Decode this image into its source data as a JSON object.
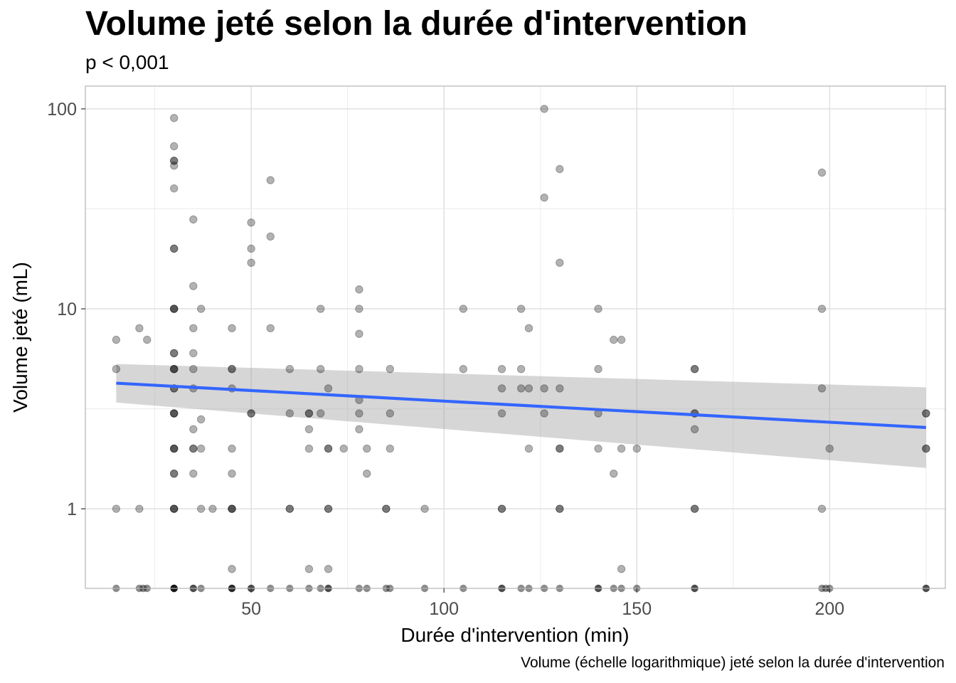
{
  "chart_data": {
    "type": "scatter",
    "title": "Volume jeté selon la durée d'intervention",
    "subtitle": "p < 0,001",
    "caption": "Volume (échelle logarithmique) jeté selon la durée d'intervention",
    "xlabel": "Durée d'intervention (min)",
    "ylabel": "Volume jeté (mL)",
    "x_scale": "linear",
    "y_scale": "log10",
    "xlim": [
      7,
      230
    ],
    "ylim": [
      0.4,
      130
    ],
    "x_ticks": [
      50,
      100,
      150,
      200
    ],
    "x_tick_labels": [
      "50",
      "100",
      "150",
      "200"
    ],
    "y_ticks": [
      1,
      10,
      100
    ],
    "y_tick_labels": [
      "1",
      "10",
      "100"
    ],
    "grid": true,
    "legend": "none",
    "colors": {
      "points": "#000000",
      "trend_line": "#3366FF",
      "confidence_band": "#999999",
      "grid": "#EBEBEB",
      "panel_border": "#B3B3B3"
    },
    "trend": {
      "method": "linear regression (log scale)",
      "x": [
        15,
        225
      ],
      "y": [
        4.25,
        2.55
      ],
      "ci_lower": [
        3.4,
        1.6
      ],
      "ci_upper": [
        5.3,
        4.05
      ]
    },
    "points": [
      [
        15,
        7
      ],
      [
        15,
        5
      ],
      [
        15,
        1
      ],
      [
        21,
        8
      ],
      [
        21,
        1
      ],
      [
        23,
        7
      ],
      [
        30,
        90
      ],
      [
        30,
        65
      ],
      [
        30,
        55
      ],
      [
        30,
        55
      ],
      [
        30,
        52
      ],
      [
        30,
        40
      ],
      [
        30,
        20
      ],
      [
        30,
        20
      ],
      [
        30,
        10
      ],
      [
        30,
        10
      ],
      [
        30,
        10
      ],
      [
        30,
        6
      ],
      [
        30,
        6
      ],
      [
        30,
        5
      ],
      [
        30,
        5
      ],
      [
        30,
        5
      ],
      [
        30,
        4
      ],
      [
        30,
        4
      ],
      [
        30,
        3
      ],
      [
        30,
        3
      ],
      [
        30,
        3
      ],
      [
        30,
        2
      ],
      [
        30,
        2
      ],
      [
        30,
        2
      ],
      [
        30,
        1.5
      ],
      [
        30,
        1.5
      ],
      [
        30,
        1
      ],
      [
        30,
        1
      ],
      [
        30,
        1
      ],
      [
        35,
        28
      ],
      [
        35,
        13
      ],
      [
        35,
        8
      ],
      [
        35,
        6
      ],
      [
        35,
        5
      ],
      [
        35,
        4
      ],
      [
        35,
        2.5
      ],
      [
        35,
        2
      ],
      [
        35,
        2
      ],
      [
        35,
        1.5
      ],
      [
        37,
        10
      ],
      [
        37,
        2.8
      ],
      [
        37,
        2
      ],
      [
        37,
        1
      ],
      [
        40,
        1
      ],
      [
        45,
        8
      ],
      [
        45,
        5
      ],
      [
        45,
        5
      ],
      [
        45,
        4
      ],
      [
        45,
        2
      ],
      [
        45,
        1.5
      ],
      [
        45,
        1
      ],
      [
        45,
        1
      ],
      [
        45,
        1
      ],
      [
        45,
        0.5
      ],
      [
        50,
        27
      ],
      [
        50,
        20
      ],
      [
        50,
        17
      ],
      [
        50,
        3
      ],
      [
        50,
        3
      ],
      [
        55,
        44
      ],
      [
        55,
        23
      ],
      [
        55,
        8
      ],
      [
        60,
        5
      ],
      [
        60,
        3
      ],
      [
        60,
        1
      ],
      [
        60,
        1
      ],
      [
        65,
        3
      ],
      [
        65,
        3
      ],
      [
        65,
        2.5
      ],
      [
        65,
        2
      ],
      [
        65,
        0.5
      ],
      [
        68,
        10
      ],
      [
        68,
        5
      ],
      [
        68,
        3
      ],
      [
        70,
        4
      ],
      [
        70,
        2
      ],
      [
        70,
        2
      ],
      [
        70,
        1
      ],
      [
        70,
        1
      ],
      [
        70,
        0.5
      ],
      [
        74,
        2
      ],
      [
        78,
        12.5
      ],
      [
        78,
        10
      ],
      [
        78,
        7.5
      ],
      [
        78,
        5
      ],
      [
        78,
        3.5
      ],
      [
        78,
        3
      ],
      [
        78,
        2.5
      ],
      [
        80,
        2
      ],
      [
        80,
        1.5
      ],
      [
        85,
        1
      ],
      [
        85,
        1
      ],
      [
        86,
        5
      ],
      [
        86,
        3
      ],
      [
        86,
        2
      ],
      [
        95,
        1
      ],
      [
        105,
        10
      ],
      [
        105,
        5
      ],
      [
        115,
        5
      ],
      [
        115,
        4
      ],
      [
        115,
        3
      ],
      [
        115,
        1
      ],
      [
        115,
        1
      ],
      [
        120,
        10
      ],
      [
        120,
        5
      ],
      [
        120,
        4
      ],
      [
        122,
        8
      ],
      [
        122,
        4
      ],
      [
        122,
        2
      ],
      [
        126,
        100
      ],
      [
        126,
        36
      ],
      [
        126,
        4
      ],
      [
        126,
        3
      ],
      [
        130,
        50
      ],
      [
        130,
        17
      ],
      [
        130,
        4
      ],
      [
        130,
        2
      ],
      [
        130,
        2
      ],
      [
        130,
        1
      ],
      [
        130,
        1
      ],
      [
        140,
        10
      ],
      [
        140,
        5
      ],
      [
        140,
        3
      ],
      [
        140,
        2
      ],
      [
        144,
        7
      ],
      [
        144,
        1.5
      ],
      [
        146,
        7
      ],
      [
        146,
        2
      ],
      [
        146,
        0.5
      ],
      [
        150,
        2
      ],
      [
        165,
        5
      ],
      [
        165,
        5
      ],
      [
        165,
        3
      ],
      [
        165,
        3
      ],
      [
        165,
        2.5
      ],
      [
        165,
        1
      ],
      [
        165,
        1
      ],
      [
        198,
        48
      ],
      [
        198,
        10
      ],
      [
        198,
        4
      ],
      [
        198,
        1
      ],
      [
        200,
        2
      ],
      [
        225,
        3
      ],
      [
        225,
        3
      ],
      [
        225,
        2
      ],
      [
        225,
        2
      ]
    ],
    "points_below_axis_x": [
      15,
      21,
      22,
      23,
      30,
      30,
      30,
      30,
      35,
      35,
      37,
      45,
      45,
      45,
      50,
      50,
      55,
      60,
      65,
      68,
      70,
      70,
      78,
      80,
      85,
      86,
      95,
      105,
      115,
      115,
      120,
      122,
      126,
      130,
      140,
      140,
      144,
      146,
      150,
      165,
      165,
      198,
      199,
      200,
      225,
      225
    ]
  }
}
